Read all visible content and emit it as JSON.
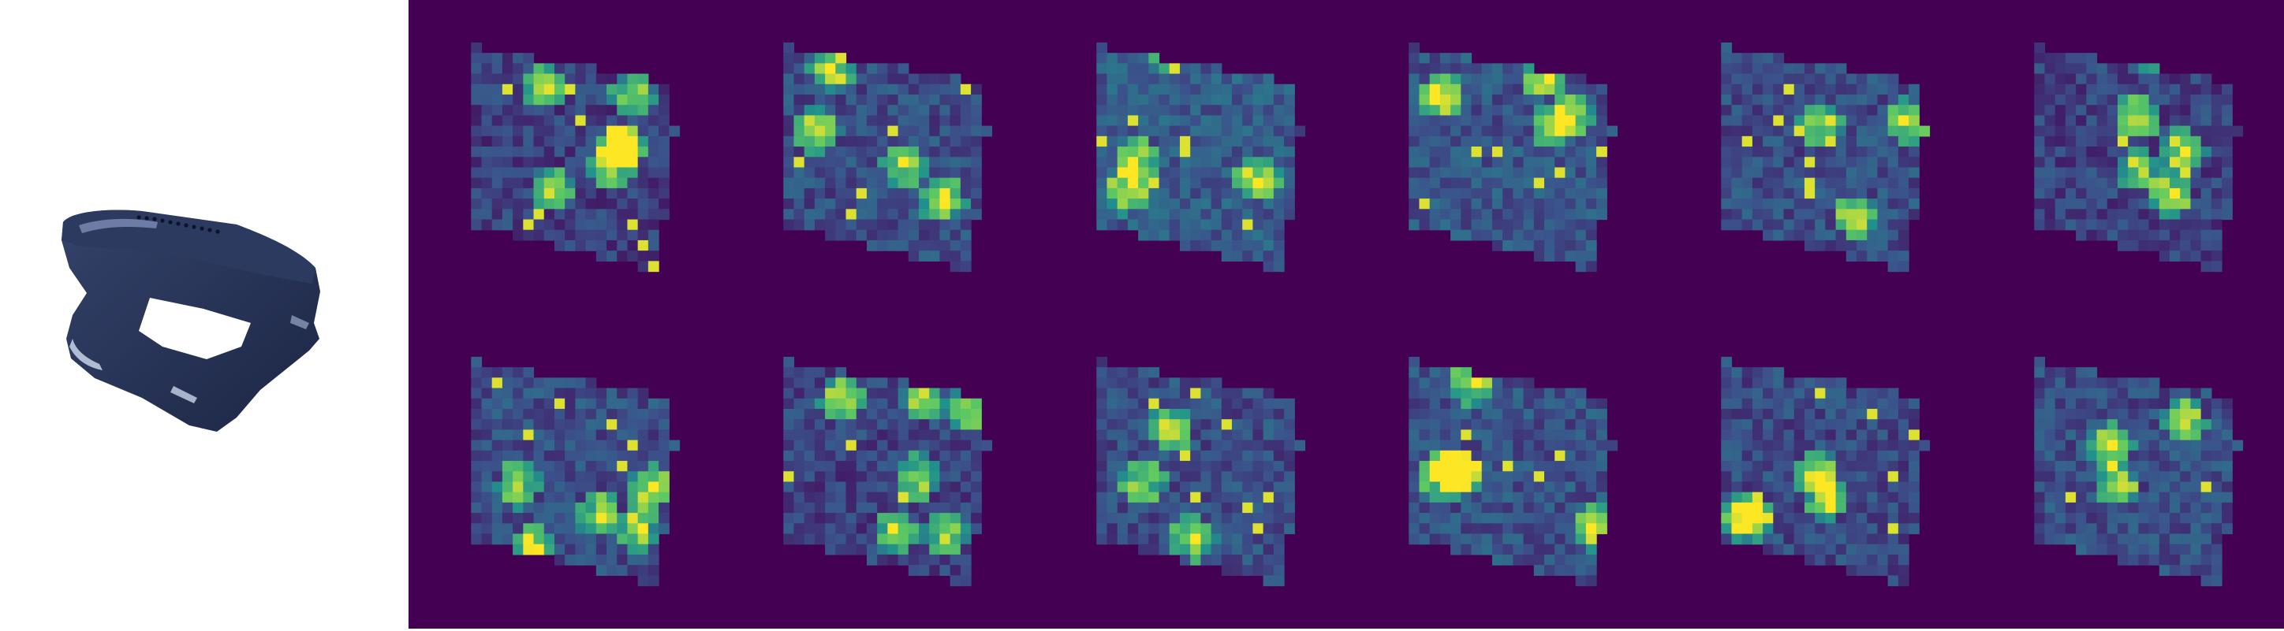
{
  "figure": {
    "photo": {
      "subject": "dark-navy-plastic-object-with-hole",
      "background": "#ffffff",
      "object_color": "#1e2a48",
      "highlight_color": "#c9d4ea"
    },
    "attention_grid": {
      "rows": 2,
      "cols": 6,
      "colormap": "viridis",
      "colormap_stops": [
        "#440154",
        "#3b528b",
        "#21918c",
        "#5ec962",
        "#fde725"
      ],
      "background_level": 0.0
    }
  }
}
